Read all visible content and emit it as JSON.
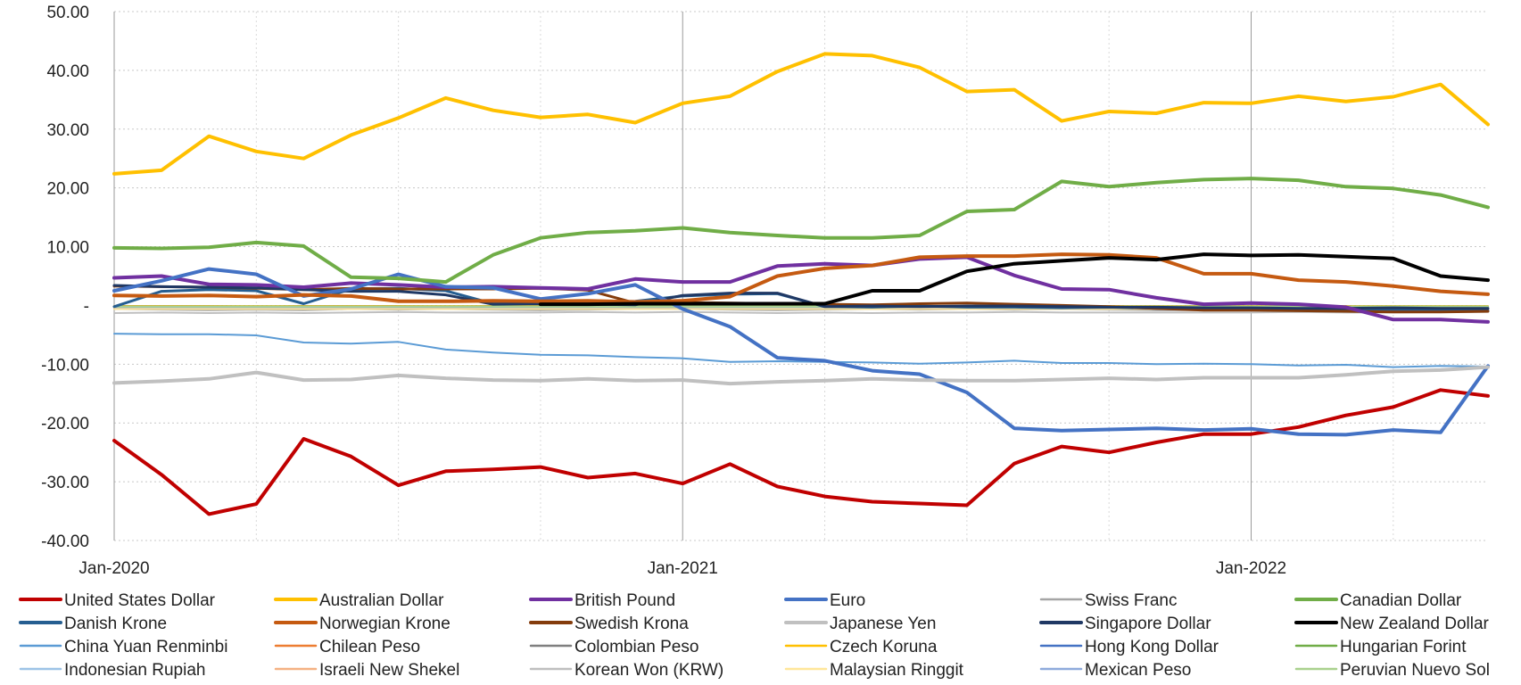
{
  "chart_data": {
    "type": "line",
    "title": "",
    "xlabel": "",
    "ylabel": "",
    "ylim": [
      -40,
      50
    ],
    "yticks": [
      {
        "value": 50,
        "label": "50.00"
      },
      {
        "value": 40,
        "label": "40.00"
      },
      {
        "value": 30,
        "label": "30.00"
      },
      {
        "value": 20,
        "label": "20.00"
      },
      {
        "value": 10,
        "label": "10.00"
      },
      {
        "value": 0,
        "label": "-"
      },
      {
        "value": -10,
        "label": "-10.00"
      },
      {
        "value": -20,
        "label": "-20.00"
      },
      {
        "value": -30,
        "label": "-30.00"
      },
      {
        "value": -40,
        "label": "-40.00"
      }
    ],
    "x": [
      "Jan-2020",
      "Feb-2020",
      "Mar-2020",
      "Apr-2020",
      "May-2020",
      "Jun-2020",
      "Jul-2020",
      "Aug-2020",
      "Sep-2020",
      "Oct-2020",
      "Nov-2020",
      "Dec-2020",
      "Jan-2021",
      "Feb-2021",
      "Mar-2021",
      "Apr-2021",
      "May-2021",
      "Jun-2021",
      "Jul-2021",
      "Aug-2021",
      "Sep-2021",
      "Oct-2021",
      "Nov-2021",
      "Dec-2021",
      "Jan-2022",
      "Feb-2022",
      "Mar-2022",
      "Apr-2022",
      "May-2022",
      "Jun-2022"
    ],
    "xticks": [
      {
        "index": 0,
        "label": "Jan-2020"
      },
      {
        "index": 12,
        "label": "Jan-2021"
      },
      {
        "index": 24,
        "label": "Jan-2022"
      }
    ],
    "grid": true,
    "legend_position": "bottom",
    "series": [
      {
        "name": "United States Dollar",
        "color": "#C00000",
        "width": 4,
        "values": [
          -23,
          -28.8,
          -35.5,
          -33.8,
          -22.7,
          -25.7,
          -30.6,
          -28.2,
          -27.9,
          -27.5,
          -29.3,
          -28.6,
          -30.3,
          -27,
          -30.8,
          -32.5,
          -33.4,
          -33.7,
          -34,
          -26.9,
          -24,
          -25,
          -23.3,
          -21.9,
          -21.9,
          -20.7,
          -18.7,
          -17.3,
          -14.4,
          -15.4
        ]
      },
      {
        "name": "Australian Dollar",
        "color": "#FFC000",
        "width": 4,
        "values": [
          22.4,
          23,
          28.8,
          26.2,
          25,
          29,
          31.9,
          35.3,
          33.2,
          32,
          32.5,
          31.1,
          34.4,
          35.6,
          39.8,
          42.8,
          42.5,
          40.5,
          36.4,
          36.7,
          31.4,
          33,
          32.7,
          34.5,
          34.4,
          35.6,
          34.7,
          35.5,
          37.6,
          30.8
        ]
      },
      {
        "name": "British Pound",
        "color": "#7030A0",
        "width": 4,
        "values": [
          4.7,
          5,
          3.6,
          3.5,
          3.1,
          3.8,
          3.5,
          3.1,
          3.2,
          3,
          2.8,
          4.5,
          4,
          4,
          6.7,
          7.1,
          6.8,
          7.9,
          8.2,
          5.1,
          2.8,
          2.7,
          1.3,
          0.2,
          0.4,
          0.2,
          -0.3,
          -2.4,
          -2.4,
          -2.8
        ]
      },
      {
        "name": "Euro",
        "color": "#4472C4",
        "width": 4,
        "values": [
          2.5,
          4.2,
          6.2,
          5.3,
          1.6,
          2.8,
          5.3,
          3.2,
          3,
          1.1,
          2,
          3.5,
          -0.6,
          -3.6,
          -8.9,
          -9.4,
          -11.1,
          -11.7,
          -14.8,
          -20.9,
          -21.3,
          -21.1,
          -20.9,
          -21.2,
          -21,
          -21.9,
          -22,
          -21.2,
          -21.6,
          -10.3
        ]
      },
      {
        "name": "Swiss Franc",
        "color": "#A5A5A5",
        "width": 2,
        "values": [
          -0.6,
          -0.7,
          -0.8,
          -0.7,
          -0.8,
          -0.6,
          -0.7,
          -0.6,
          -0.7,
          -0.8,
          -0.7,
          -0.6,
          -0.6,
          -0.7,
          -0.8,
          -0.7,
          -0.6,
          -0.7,
          -0.6,
          -0.7,
          -0.6,
          -0.7,
          -0.8,
          -0.8,
          -0.7,
          -0.8,
          -0.7,
          -0.8,
          -0.7,
          -0.7
        ]
      },
      {
        "name": "Canadian Dollar",
        "color": "#70AD47",
        "width": 4,
        "values": [
          9.8,
          9.7,
          9.9,
          10.7,
          10.1,
          4.8,
          4.6,
          4,
          8.6,
          11.5,
          12.4,
          12.7,
          13.2,
          12.4,
          11.9,
          11.5,
          11.5,
          11.9,
          16,
          16.3,
          21.1,
          20.2,
          20.9,
          21.4,
          21.6,
          21.3,
          20.2,
          19.9,
          18.8,
          16.7
        ]
      },
      {
        "name": "Danish Krone",
        "color": "#255E91",
        "width": 3,
        "values": [
          -0.2,
          2.4,
          2.7,
          2.5,
          0.3,
          2.8,
          2.9,
          2.5,
          0.3,
          0.3,
          0.5,
          0.7,
          1.6,
          1.9,
          2,
          -0.2,
          -0.3,
          -0.1,
          -0.3,
          -0.3,
          -0.4,
          -0.3,
          -0.5,
          -0.7,
          -0.7,
          -0.8,
          -0.9,
          -0.8,
          -0.9,
          -0.9
        ]
      },
      {
        "name": "Norwegian Krone",
        "color": "#C55A11",
        "width": 4,
        "values": [
          1.7,
          1.6,
          1.7,
          1.5,
          1.8,
          1.6,
          0.7,
          0.7,
          0.8,
          0.7,
          0.8,
          0.6,
          0.8,
          1.5,
          5,
          6.3,
          6.8,
          8.2,
          8.4,
          8.4,
          8.7,
          8.6,
          8.1,
          5.4,
          5.4,
          4.3,
          4,
          3.3,
          2.4,
          1.9
        ]
      },
      {
        "name": "Swedish Krona",
        "color": "#843C0C",
        "width": 3,
        "values": [
          3.3,
          3.2,
          3.1,
          2.9,
          2.7,
          2.9,
          2.8,
          2.8,
          2.8,
          2.9,
          2.6,
          0.4,
          0.5,
          0.4,
          0.3,
          0.2,
          0.1,
          0.3,
          0.4,
          0.2,
          0,
          -0.2,
          -0.5,
          -0.8,
          -0.8,
          -0.9,
          -1,
          -1.1,
          -1.1,
          -1
        ]
      },
      {
        "name": "Japanese Yen",
        "color": "#C0C0C0",
        "width": 4,
        "values": [
          -13.2,
          -12.9,
          -12.5,
          -11.4,
          -12.7,
          -12.6,
          -11.9,
          -12.4,
          -12.7,
          -12.8,
          -12.5,
          -12.8,
          -12.7,
          -13.3,
          -13,
          -12.8,
          -12.5,
          -12.7,
          -12.8,
          -12.8,
          -12.6,
          -12.4,
          -12.6,
          -12.3,
          -12.3,
          -12.3,
          -11.8,
          -11.2,
          -11,
          -10.5
        ]
      },
      {
        "name": "Singapore Dollar",
        "color": "#1F3864",
        "width": 3,
        "values": [
          3.4,
          3.2,
          3.1,
          3,
          2.7,
          2.4,
          2.4,
          1.8,
          0.2,
          0.3,
          0.2,
          0.1,
          1.7,
          2.1,
          2.1,
          -0.2,
          -0.1,
          -0.2,
          -0.1,
          -0.1,
          -0.2,
          -0.3,
          -0.3,
          -0.4,
          -0.4,
          -0.5,
          -0.5,
          -0.4,
          -0.5,
          -0.5
        ]
      },
      {
        "name": "New Zealand Dollar",
        "color": "#000000",
        "width": 4,
        "values": [
          null,
          null,
          null,
          null,
          null,
          null,
          null,
          null,
          null,
          0.2,
          0.2,
          0.3,
          0.3,
          0.3,
          0.3,
          0.3,
          2.5,
          2.5,
          5.8,
          7.1,
          7.6,
          8.1,
          7.8,
          8.7,
          8.5,
          8.6,
          8.3,
          8,
          5,
          4.3
        ]
      },
      {
        "name": "China Yuan Renminbi",
        "color": "#5B9BD5",
        "width": 2,
        "values": [
          -4.8,
          -4.9,
          -4.9,
          -5.1,
          -6.3,
          -6.5,
          -6.2,
          -7.5,
          -8,
          -8.4,
          -8.5,
          -8.8,
          -9,
          -9.6,
          -9.5,
          -9.6,
          -9.7,
          -9.9,
          -9.7,
          -9.4,
          -9.8,
          -9.8,
          -10,
          -9.9,
          -10,
          -10.2,
          -10.1,
          -10.5,
          -10.3,
          -10.4
        ]
      },
      {
        "name": "Chilean Peso",
        "color": "#ED7D31",
        "width": 2,
        "values": [
          -0.1,
          -0.1,
          -0.1,
          -0.2,
          -0.1,
          -0.1,
          -0.1,
          -0.2,
          -0.1,
          -0.1,
          -0.1,
          -0.2,
          -0.2,
          -0.1,
          -0.1,
          -0.1,
          -0.2,
          -0.2,
          -0.1,
          -0.1,
          -0.1,
          -0.2,
          -0.2,
          -0.2,
          -0.2,
          -0.2,
          -0.2,
          -0.2,
          -0.2,
          -0.2
        ]
      },
      {
        "name": "Colombian Peso",
        "color": "#7F7F7F",
        "width": 2,
        "values": [
          -0.3,
          -0.3,
          -0.3,
          -0.3,
          -0.3,
          -0.3,
          -0.3,
          -0.3,
          -0.3,
          -0.3,
          -0.3,
          -0.3,
          -0.3,
          -0.3,
          -0.3,
          -0.3,
          -0.3,
          -0.3,
          -0.3,
          -0.3,
          -0.3,
          -0.3,
          -0.3,
          -0.3,
          -0.3,
          -0.3,
          -0.3,
          -0.3,
          -0.3,
          -0.3
        ]
      },
      {
        "name": "Czech Koruna",
        "color": "#FFC000",
        "width": 2,
        "values": [
          -0.1,
          -0.1,
          -0.1,
          -0.1,
          -0.1,
          -0.1,
          -0.1,
          -0.1,
          -0.1,
          -0.1,
          -0.1,
          -0.1,
          -0.1,
          -0.1,
          -0.1,
          -0.1,
          -0.1,
          -0.1,
          -0.1,
          -0.1,
          -0.1,
          -0.1,
          -0.1,
          -0.1,
          -0.1,
          -0.1,
          -0.1,
          -0.1,
          -0.1,
          -0.1
        ]
      },
      {
        "name": "Hong Kong Dollar",
        "color": "#4472C4",
        "width": 2,
        "values": [
          -0.2,
          -0.2,
          -0.2,
          -0.2,
          -0.2,
          -0.2,
          -0.2,
          -0.2,
          -0.2,
          -0.2,
          -0.2,
          -0.2,
          -0.2,
          -0.2,
          -0.2,
          -0.2,
          -0.2,
          -0.2,
          -0.2,
          -0.2,
          -0.2,
          -0.2,
          -0.2,
          -0.2,
          -0.2,
          -0.2,
          -0.2,
          -0.2,
          -0.2,
          -0.2
        ]
      },
      {
        "name": "Hungarian Forint",
        "color": "#70AD47",
        "width": 2,
        "values": [
          -0.2,
          -0.2,
          -0.2,
          -0.2,
          -0.2,
          -0.2,
          -0.2,
          -0.2,
          -0.2,
          -0.2,
          -0.2,
          -0.2,
          -0.2,
          -0.2,
          -0.2,
          -0.2,
          -0.2,
          -0.2,
          -0.2,
          -0.2,
          -0.2,
          -0.2,
          -0.2,
          -0.2,
          -0.2,
          -0.2,
          -0.2,
          -0.2,
          -0.2,
          -0.2
        ]
      },
      {
        "name": "Indonesian Rupiah",
        "color": "#9DC3E6",
        "width": 2,
        "values": [
          -0.4,
          -0.4,
          -0.4,
          -0.4,
          -0.4,
          -0.4,
          -0.4,
          -0.4,
          -0.4,
          -0.4,
          -0.4,
          -0.4,
          -0.4,
          -0.4,
          -0.4,
          -0.4,
          -0.4,
          -0.4,
          -0.4,
          -0.4,
          -0.4,
          -0.4,
          -0.4,
          -0.4,
          -0.4,
          -0.4,
          -0.4,
          -0.4,
          -0.4,
          -0.4
        ]
      },
      {
        "name": "Israeli New Shekel",
        "color": "#F4B183",
        "width": 2,
        "values": [
          -0.5,
          -0.5,
          -0.5,
          -0.5,
          -0.5,
          -0.5,
          -0.5,
          -0.5,
          -0.5,
          -0.5,
          -0.5,
          -0.5,
          -0.5,
          -0.5,
          -0.5,
          -0.5,
          -0.5,
          -0.5,
          -0.5,
          -0.5,
          -0.5,
          -0.5,
          -0.5,
          -0.5,
          -0.5,
          -0.5,
          -0.5,
          -0.5,
          -0.5,
          -0.5
        ]
      },
      {
        "name": "Korean Won (KRW)",
        "color": "#BFBFBF",
        "width": 2,
        "values": [
          -1.3,
          -1.2,
          -1.3,
          -1.2,
          -1.3,
          -1.2,
          -1.1,
          -1.2,
          -1.2,
          -1.2,
          -1.1,
          -1.2,
          -1.1,
          -1.2,
          -1.3,
          -1.2,
          -1.3,
          -1.2,
          -1.2,
          -1.1,
          -1.2,
          -1.2,
          -1.2,
          -1.2,
          -1.2,
          -1.1,
          -1.2,
          -1.2,
          -1.1,
          -1.1
        ]
      },
      {
        "name": "Malaysian Ringgit",
        "color": "#FFE699",
        "width": 2,
        "values": [
          -0.6,
          -0.6,
          -0.6,
          -0.6,
          -0.6,
          -0.6,
          -0.6,
          -0.6,
          -0.6,
          -0.6,
          -0.6,
          -0.6,
          -0.6,
          -0.6,
          -0.6,
          -0.6,
          -0.6,
          -0.6,
          -0.6,
          -0.6,
          -0.6,
          -0.6,
          -0.6,
          -0.6,
          -0.6,
          -0.6,
          -0.6,
          -0.6,
          -0.6,
          -0.6
        ]
      },
      {
        "name": "Mexican Peso",
        "color": "#8FAADC",
        "width": 2,
        "values": [
          -0.3,
          -0.3,
          -0.3,
          -0.3,
          -0.3,
          -0.3,
          -0.3,
          -0.3,
          -0.3,
          -0.3,
          -0.3,
          -0.3,
          -0.3,
          -0.3,
          -0.3,
          -0.3,
          -0.3,
          -0.3,
          -0.3,
          -0.3,
          -0.3,
          -0.3,
          -0.3,
          -0.3,
          -0.3,
          -0.3,
          -0.3,
          -0.3,
          -0.3,
          -0.3
        ]
      },
      {
        "name": "Peruvian Nuevo Sol",
        "color": "#A9D18E",
        "width": 2,
        "values": [
          -0.2,
          -0.2,
          -0.2,
          -0.2,
          -0.2,
          -0.2,
          -0.2,
          -0.2,
          -0.2,
          -0.2,
          -0.2,
          -0.2,
          -0.2,
          -0.2,
          -0.2,
          -0.2,
          -0.2,
          -0.2,
          -0.2,
          -0.2,
          -0.2,
          -0.2,
          -0.2,
          -0.2,
          -0.2,
          -0.2,
          -0.2,
          -0.2,
          -0.2,
          -0.2
        ]
      }
    ]
  }
}
